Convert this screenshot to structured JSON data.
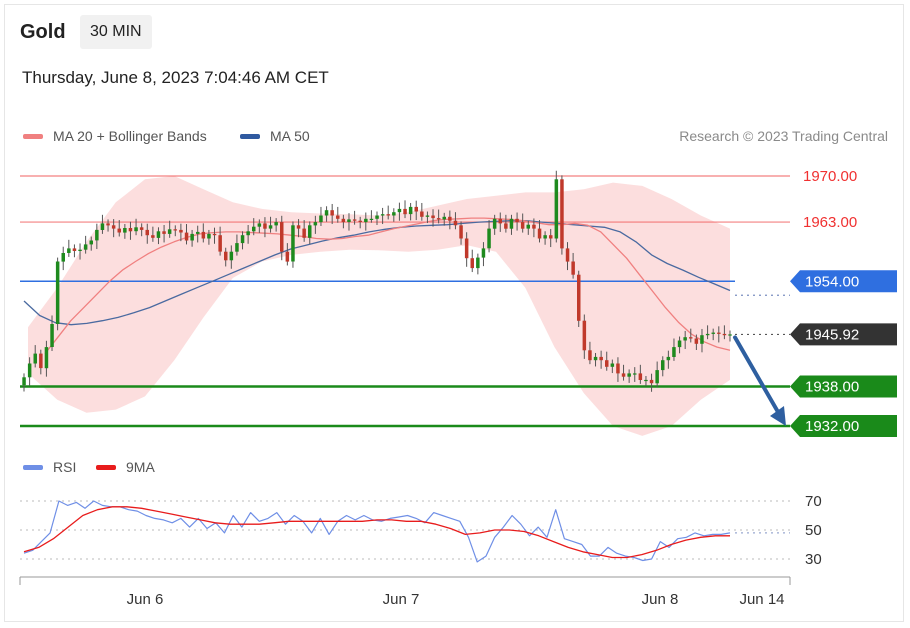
{
  "header": {
    "instrument": "Gold",
    "timeframe": "30 MIN",
    "datetime": "Thursday, June 8, 2023 7:04:46 AM CET"
  },
  "legend": {
    "ma20_label": "MA 20 + Bollinger Bands",
    "ma50_label": "MA 50",
    "copyright": "Research © 2023 Trading Central",
    "rsi_label": "RSI",
    "rsi_ma_label": "9MA"
  },
  "colors": {
    "candle_up": "#1e8a1e",
    "candle_down": "#c0392b",
    "ma20": "#f08080",
    "ma50": "#4a6aa0",
    "band_fill": "#fbd8d8",
    "resistance": "#f06060",
    "pivot": "#2f6fe0",
    "support": "#1a8a1a",
    "current": "#333333",
    "arrow": "#2e5fa0",
    "rsi": "#6f8fe6",
    "rsi_ma": "#e81c1c"
  },
  "chart_data": [
    {
      "type": "candlestick",
      "instrument": "Gold",
      "timeframe": "30 MIN",
      "x_tick_labels": [
        "Jun 6",
        "Jun 7",
        "Jun 8",
        "Jun 14"
      ],
      "ylim": [
        1928,
        1972
      ],
      "price_levels": [
        {
          "value": 1970.0,
          "label": "1970.00",
          "kind": "resistance"
        },
        {
          "value": 1963.0,
          "label": "1963.00",
          "kind": "resistance"
        },
        {
          "value": 1954.0,
          "label": "1954.00",
          "kind": "pivot"
        },
        {
          "value": 1945.92,
          "label": "1945.92",
          "kind": "current"
        },
        {
          "value": 1938.0,
          "label": "1938.00",
          "kind": "support"
        },
        {
          "value": 1932.0,
          "label": "1932.00",
          "kind": "support"
        }
      ],
      "close_series": [
        1939.4,
        1941.5,
        1943.0,
        1940.8,
        1944.0,
        1947.5,
        1957.0,
        1958.3,
        1959.0,
        1958.6,
        1958.8,
        1959.6,
        1960.2,
        1961.8,
        1962.8,
        1962.5,
        1962.0,
        1961.4,
        1962.1,
        1961.6,
        1962.2,
        1961.8,
        1961.0,
        1960.6,
        1961.6,
        1961.2,
        1961.9,
        1961.8,
        1961.4,
        1960.2,
        1961.2,
        1961.5,
        1960.5,
        1961.2,
        1961.0,
        1958.5,
        1957.2,
        1958.5,
        1959.8,
        1961.0,
        1961.6,
        1962.3,
        1962.8,
        1962.0,
        1962.5,
        1963.0,
        1958.5,
        1957.0,
        1962.5,
        1962.0,
        1960.6,
        1962.5,
        1963.0,
        1964.0,
        1964.8,
        1964.0,
        1963.5,
        1963.0,
        1963.4,
        1963.2,
        1963.0,
        1963.5,
        1963.5,
        1964.0,
        1964.2,
        1964.0,
        1964.5,
        1965.0,
        1964.2,
        1965.3,
        1964.6,
        1963.8,
        1964.0,
        1963.6,
        1963.4,
        1963.8,
        1963.2,
        1962.5,
        1960.5,
        1957.5,
        1956.0,
        1957.6,
        1959.0,
        1962.0,
        1963.5,
        1962.8,
        1962.0,
        1963.5,
        1963.0,
        1962.0,
        1962.6,
        1962.0,
        1960.5,
        1961.0,
        1960.5,
        1969.5,
        1959.0,
        1957.0,
        1955.0,
        1948.0,
        1943.5,
        1942.0,
        1942.5,
        1942.0,
        1941.0,
        1941.5,
        1940.0,
        1939.5,
        1940.0,
        1940.0,
        1939.0,
        1939.0,
        1938.5,
        1940.5,
        1942.0,
        1942.5,
        1944.0,
        1945.0,
        1945.5,
        1945.3,
        1944.5,
        1945.8,
        1946.0,
        1946.2,
        1946.0,
        1945.8,
        1945.92
      ],
      "ma20_series": [
        1943.0,
        1945.5,
        1948.0,
        1950.0,
        1952.0,
        1954.0,
        1955.7,
        1957.0,
        1958.2,
        1959.2,
        1960.0,
        1960.7,
        1961.2,
        1961.4,
        1961.5,
        1961.5,
        1961.4,
        1961.3,
        1961.2,
        1961.0,
        1960.8,
        1960.5,
        1960.4,
        1960.5,
        1960.8,
        1961.0,
        1961.5,
        1962.0,
        1962.4,
        1962.8,
        1963.2,
        1963.4,
        1963.5,
        1963.6,
        1963.6,
        1963.5,
        1963.4,
        1963.2,
        1962.9,
        1962.6,
        1962.6,
        1962.8,
        1962.5,
        1961.5,
        1959.5,
        1957.5,
        1955.0,
        1952.5,
        1950.0,
        1947.8,
        1946.0,
        1944.8,
        1944.0,
        1943.5
      ],
      "ma50_series": [
        1951.0,
        1948.8,
        1947.7,
        1947.4,
        1947.6,
        1948.0,
        1948.5,
        1949.2,
        1950.0,
        1951.0,
        1952.0,
        1953.0,
        1954.0,
        1955.0,
        1956.0,
        1957.0,
        1958.0,
        1958.9,
        1959.5,
        1960.1,
        1960.6,
        1961.0,
        1961.5,
        1961.9,
        1962.2,
        1962.4,
        1962.5,
        1962.6,
        1962.8,
        1963.0,
        1963.1,
        1963.2,
        1963.2,
        1963.0,
        1962.8,
        1962.6,
        1962.4,
        1962.2,
        1961.5,
        1960.0,
        1958.0,
        1956.7,
        1955.7,
        1954.6,
        1953.6,
        1952.6
      ],
      "bollinger_upper": [
        1947.0,
        1953.0,
        1960.0,
        1966.0,
        1969.5,
        1970.0,
        1968.0,
        1966.0,
        1965.0,
        1964.5,
        1964.3,
        1964.2,
        1964.0,
        1964.5,
        1965.5,
        1966.5,
        1967.0,
        1967.5,
        1967.5,
        1968.0,
        1969.0,
        1968.5,
        1966.5,
        1964.0,
        1962.0
      ],
      "bollinger_lower": [
        1940.0,
        1936.0,
        1934.0,
        1934.5,
        1936.5,
        1942.0,
        1948.5,
        1954.5,
        1957.0,
        1958.0,
        1958.5,
        1958.8,
        1958.7,
        1958.5,
        1958.8,
        1959.5,
        1958.5,
        1953.0,
        1944.0,
        1937.0,
        1932.0,
        1930.5,
        1932.0,
        1936.0,
        1939.0
      ],
      "projection": {
        "from": 1945.92,
        "to": 1932.0
      }
    },
    {
      "type": "line",
      "title": "RSI",
      "series": [
        {
          "name": "RSI",
          "values": [
            34,
            36,
            42,
            48,
            70,
            67,
            69,
            65,
            70,
            67,
            66,
            66,
            64,
            63,
            60,
            58,
            57,
            55,
            58,
            52,
            58,
            51,
            55,
            48,
            60,
            52,
            62,
            56,
            58,
            62,
            54,
            60,
            56,
            48,
            58,
            47,
            56,
            60,
            57,
            60,
            57,
            56,
            58,
            59,
            60,
            58,
            55,
            62,
            60,
            58,
            56,
            45,
            28,
            32,
            45,
            52,
            60,
            54,
            46,
            52,
            45,
            64,
            44,
            42,
            40,
            32,
            32,
            38,
            34,
            32,
            31,
            29,
            30,
            42,
            38,
            44,
            45,
            48,
            46,
            47,
            47,
            48
          ]
        },
        {
          "name": "9MA",
          "values": [
            35,
            38,
            44,
            52,
            60,
            64,
            66,
            66,
            65,
            63,
            61,
            59,
            57,
            55,
            54,
            54,
            54,
            55,
            56,
            56,
            56,
            56,
            56,
            56,
            57,
            57,
            56,
            56,
            54,
            51,
            47,
            48,
            50,
            50,
            49,
            46,
            42,
            38,
            35,
            33,
            31,
            31,
            33,
            36,
            40,
            43,
            45,
            46,
            46
          ]
        }
      ],
      "ylim": [
        25,
        75
      ],
      "y_ticks": [
        70,
        50,
        30
      ]
    }
  ]
}
